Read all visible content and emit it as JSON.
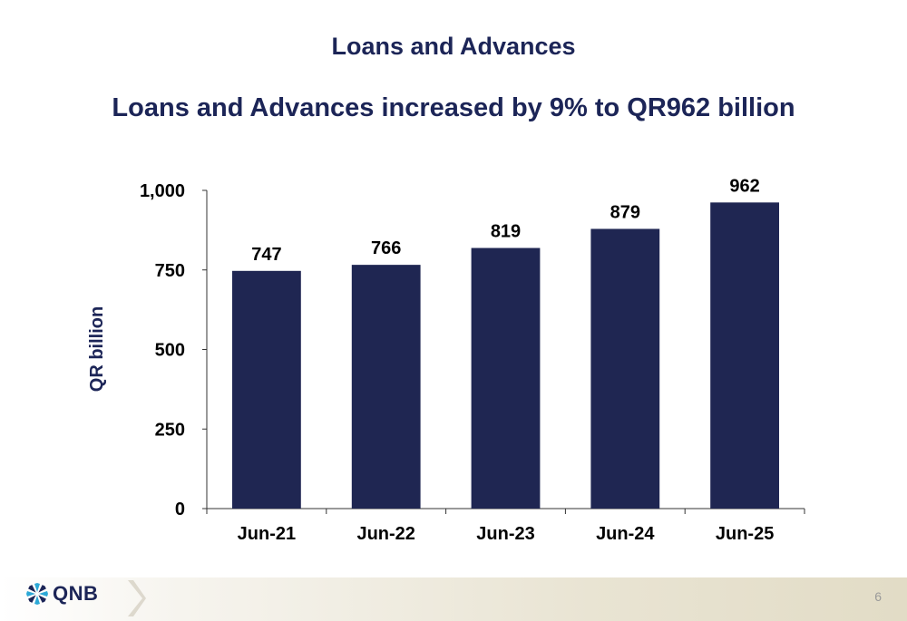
{
  "slide": {
    "title": "Loans and Advances",
    "subtitle": "Loans and Advances increased by 9% to QR962 billion",
    "page_number": "6"
  },
  "brand": {
    "logo_text": "QNB",
    "logo_icon": "qnb-star-icon",
    "chevron_icon": "chevron-right-icon",
    "primary_color": "#1c2557",
    "accent_color": "#2ca8d6"
  },
  "chart_data": {
    "type": "bar",
    "categories": [
      "Jun-21",
      "Jun-22",
      "Jun-23",
      "Jun-24",
      "Jun-25"
    ],
    "values": [
      747,
      766,
      819,
      879,
      962
    ],
    "data_labels": [
      "747",
      "766",
      "819",
      "879",
      "962"
    ],
    "ylabel": "QR billion",
    "ylim": [
      0,
      1000
    ],
    "yticks": [
      0,
      250,
      500,
      750,
      1000
    ],
    "ytick_labels": [
      "0",
      "250",
      "500",
      "750",
      "1,000"
    ],
    "bar_color": "#1f2652",
    "grid": false,
    "legend": false
  }
}
